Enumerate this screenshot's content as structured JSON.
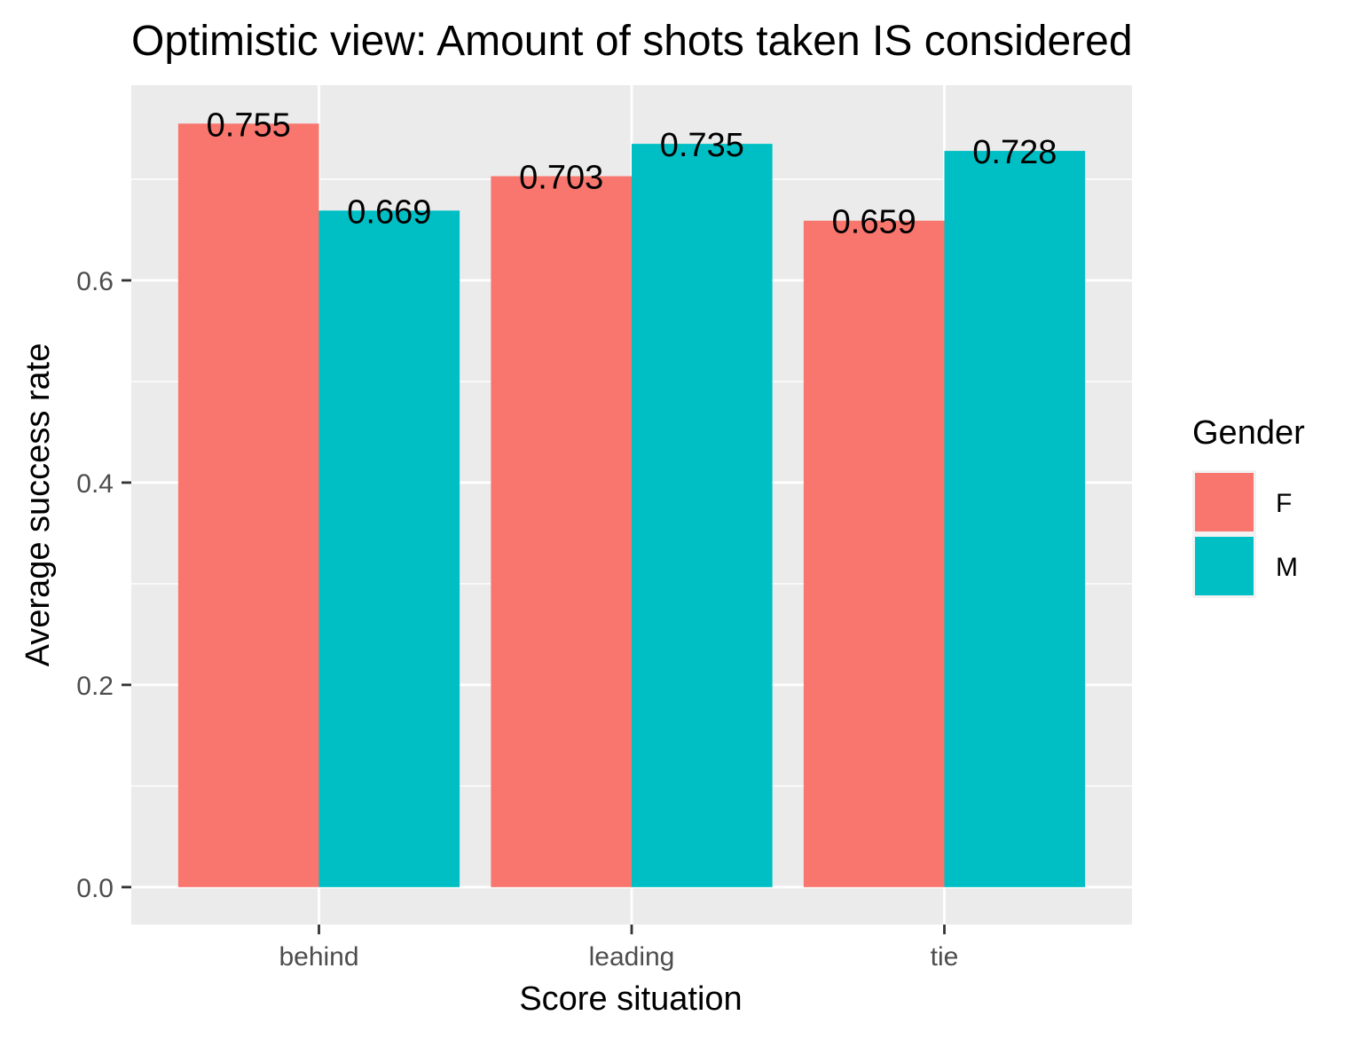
{
  "chart_data": {
    "type": "bar",
    "title": "Optimistic view: Amount of shots taken IS considered",
    "xlabel": "Score situation",
    "ylabel": "Average success rate",
    "categories": [
      "behind",
      "leading",
      "tie"
    ],
    "series": [
      {
        "name": "F",
        "color": "#F8766D",
        "values": [
          0.755,
          0.703,
          0.659
        ]
      },
      {
        "name": "M",
        "color": "#00BFC4",
        "values": [
          0.669,
          0.735,
          0.728
        ]
      }
    ],
    "data_labels": [
      [
        "0.755",
        "0.703",
        "0.659"
      ],
      [
        "0.669",
        "0.735",
        "0.728"
      ]
    ],
    "ylim": [
      -0.037,
      0.793
    ],
    "yticks": [
      0.0,
      0.2,
      0.4,
      0.6
    ],
    "ytick_labels": [
      "0.0",
      "0.2",
      "0.4",
      "0.6"
    ],
    "grid": true,
    "panel_background": "#EBEBEB",
    "legend": {
      "title": "Gender",
      "position": "right"
    }
  }
}
